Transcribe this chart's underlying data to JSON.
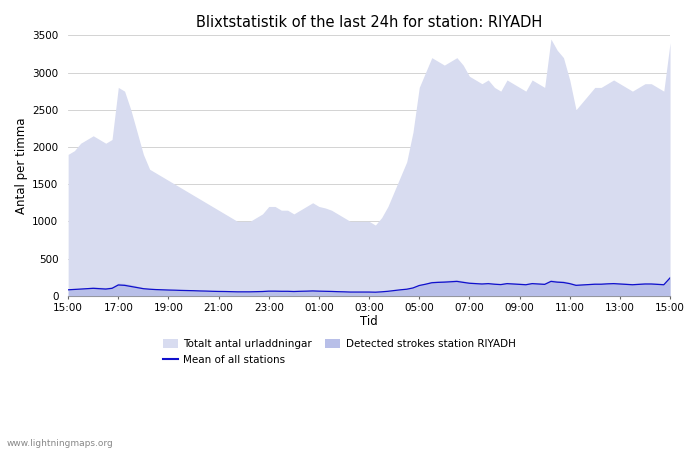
{
  "title": "Blixtstatistik of the last 24h for station: RIYADH",
  "xlabel": "Tid",
  "ylabel": "Antal per timma",
  "watermark": "www.lightningmaps.org",
  "x_ticks": [
    "15:00",
    "17:00",
    "19:00",
    "21:00",
    "23:00",
    "01:00",
    "03:00",
    "05:00",
    "07:00",
    "09:00",
    "11:00",
    "13:00",
    "15:00"
  ],
  "ylim": [
    0,
    3500
  ],
  "yticks": [
    0,
    500,
    1000,
    1500,
    2000,
    2500,
    3000,
    3500
  ],
  "legend_labels": [
    "Totalt antal urladdningar",
    "Detected strokes station RIYADH",
    "Mean of all stations"
  ],
  "color_fill_light": "#d8dcf0",
  "color_fill_medium": "#b8bfe8",
  "color_line": "#1010cc",
  "background_color": "#ffffff",
  "num_points": 97,
  "total_urladdningar": [
    1900,
    1950,
    2050,
    2100,
    2150,
    2100,
    2050,
    2100,
    2800,
    2750,
    2500,
    2200,
    1900,
    1700,
    1650,
    1600,
    1550,
    1500,
    1450,
    1400,
    1350,
    1300,
    1250,
    1200,
    1150,
    1100,
    1050,
    1000,
    1000,
    1000,
    1050,
    1100,
    1200,
    1200,
    1150,
    1150,
    1100,
    1150,
    1200,
    1250,
    1200,
    1180,
    1150,
    1100,
    1050,
    1000,
    1000,
    1000,
    1000,
    950,
    1050,
    1200,
    1400,
    1600,
    1800,
    2200,
    2800,
    3000,
    3200,
    3150,
    3100,
    3150,
    3200,
    3100,
    2950,
    2900,
    2850,
    2900,
    2800,
    2750,
    2900,
    2850,
    2800,
    2750,
    2900,
    2850,
    2800,
    3450,
    3300,
    3200,
    2900,
    2500,
    2600,
    2700,
    2800,
    2800,
    2850,
    2900,
    2850,
    2800,
    2750,
    2800,
    2850,
    2850,
    2800,
    2750,
    3400
  ],
  "detected_strokes": [
    90,
    95,
    100,
    110,
    120,
    115,
    110,
    120,
    170,
    165,
    150,
    130,
    110,
    100,
    95,
    90,
    85,
    80,
    78,
    75,
    72,
    70,
    68,
    65,
    63,
    62,
    60,
    58,
    58,
    58,
    60,
    62,
    68,
    68,
    65,
    65,
    62,
    65,
    68,
    72,
    68,
    65,
    63,
    60,
    58,
    55,
    55,
    55,
    55,
    52,
    58,
    65,
    75,
    85,
    95,
    115,
    150,
    170,
    195,
    200,
    205,
    210,
    215,
    200,
    185,
    180,
    175,
    180,
    170,
    165,
    180,
    175,
    170,
    165,
    180,
    175,
    170,
    215,
    205,
    200,
    180,
    155,
    160,
    165,
    170,
    170,
    175,
    180,
    175,
    170,
    165,
    170,
    175,
    175,
    170,
    165,
    265
  ],
  "mean_stations": [
    80,
    85,
    90,
    95,
    100,
    95,
    90,
    100,
    145,
    140,
    125,
    110,
    95,
    88,
    83,
    80,
    77,
    75,
    72,
    70,
    68,
    65,
    63,
    60,
    58,
    57,
    55,
    53,
    53,
    53,
    55,
    57,
    62,
    62,
    60,
    60,
    57,
    60,
    62,
    65,
    62,
    60,
    58,
    55,
    53,
    50,
    50,
    50,
    50,
    48,
    53,
    60,
    70,
    80,
    88,
    105,
    138,
    155,
    175,
    180,
    183,
    188,
    193,
    180,
    168,
    163,
    158,
    163,
    155,
    150,
    163,
    158,
    153,
    148,
    163,
    158,
    153,
    193,
    183,
    178,
    163,
    140,
    145,
    150,
    155,
    155,
    160,
    163,
    158,
    153,
    148,
    153,
    158,
    158,
    153,
    148,
    240
  ]
}
